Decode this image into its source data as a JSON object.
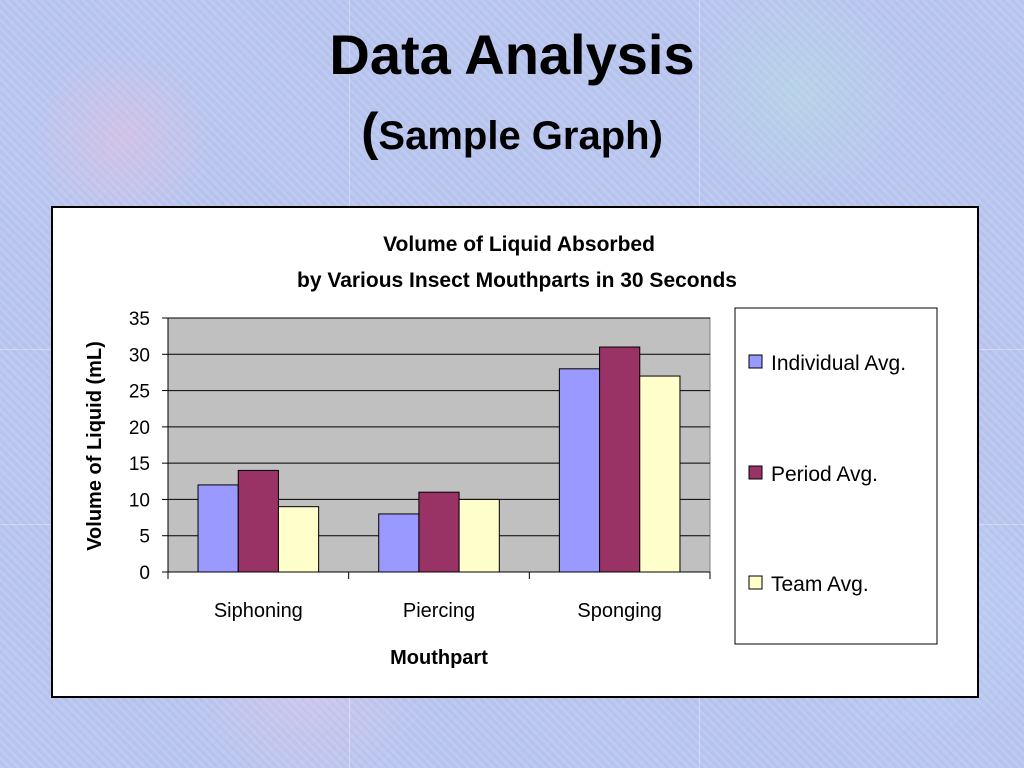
{
  "slide": {
    "title": "Data Analysis",
    "subtitle_open": "(",
    "subtitle_text": "Sample Graph)"
  },
  "chart_data": {
    "type": "bar",
    "title_lines": [
      "Volume of Liquid Absorbed",
      "by Various Insect Mouthparts in 30 Seconds"
    ],
    "xlabel": "Mouthpart",
    "ylabel": "Volume of Liquid (mL)",
    "categories": [
      "Siphoning",
      "Piercing",
      "Sponging"
    ],
    "series": [
      {
        "name": "Individual Avg.",
        "values": [
          12,
          8,
          28
        ],
        "color": "#9999ff"
      },
      {
        "name": "Period Avg.",
        "values": [
          14,
          11,
          31
        ],
        "color": "#993366"
      },
      {
        "name": "Team Avg.",
        "values": [
          9,
          10,
          27
        ],
        "color": "#ffffcc"
      }
    ],
    "ylim": [
      0,
      35
    ],
    "yticks": [
      0,
      5,
      10,
      15,
      20,
      25,
      30,
      35
    ],
    "plot_background": "#c0c0c0",
    "grid": true,
    "legend_position": "right"
  }
}
